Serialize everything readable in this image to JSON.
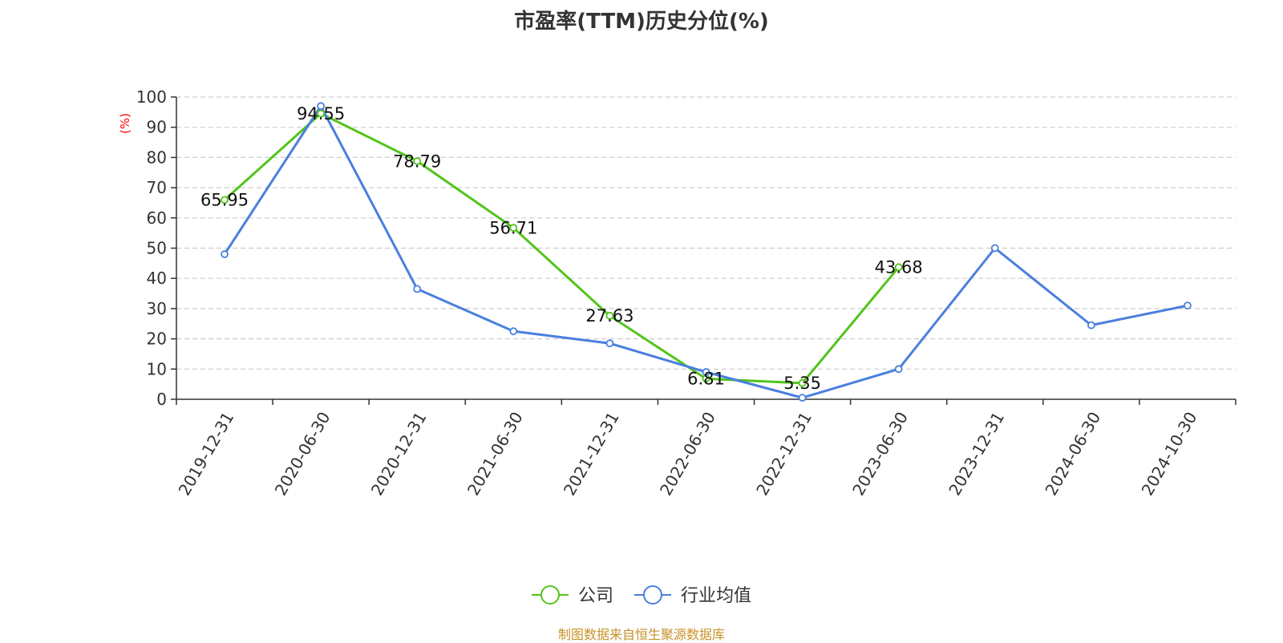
{
  "title": "市盈率(TTM)历史分位(%)",
  "source": "制图数据来自恒生聚源数据库",
  "chart_data": {
    "type": "line",
    "title": "市盈率(TTM)历史分位(%)",
    "ylabel": "(%)",
    "ylim": [
      0,
      100
    ],
    "yticks": [
      0,
      10,
      20,
      30,
      40,
      50,
      60,
      70,
      80,
      90,
      100
    ],
    "grid": true,
    "legend_position": "bottom-center",
    "categories": [
      "2019-12-31",
      "2020-06-30",
      "2020-12-31",
      "2021-06-30",
      "2021-12-31",
      "2022-06-30",
      "2022-12-31",
      "2023-06-30",
      "2023-12-31",
      "2024-06-30",
      "2024-10-30"
    ],
    "series": [
      {
        "name": "公司",
        "color": "#52c41a",
        "values": [
          65.95,
          94.55,
          78.79,
          56.71,
          27.63,
          6.81,
          5.35,
          43.68,
          null,
          null,
          null
        ],
        "show_labels": true
      },
      {
        "name": "行业均值",
        "color": "#4a7fde",
        "values": [
          48,
          97,
          36.5,
          22.5,
          18.5,
          9,
          0.5,
          10,
          50,
          24.5,
          31
        ],
        "show_labels": false
      }
    ]
  }
}
